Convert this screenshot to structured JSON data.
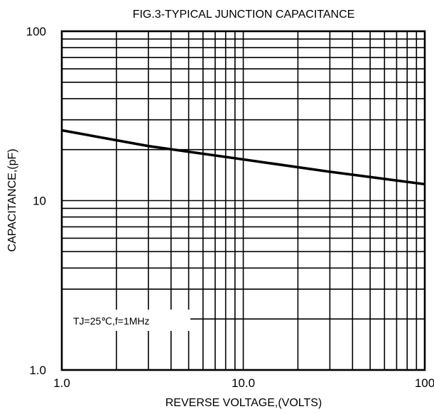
{
  "chart_data": {
    "type": "line",
    "title": "FIG.3-TYPICAL JUNCTION CAPACITANCE",
    "xlabel": "REVERSE VOLTAGE,(VOLTS)",
    "ylabel": "CAPACITANCE,(pF)",
    "x_scale": "log",
    "y_scale": "log",
    "xlim": [
      1,
      100
    ],
    "ylim": [
      1,
      100
    ],
    "x_ticks": [
      1,
      10,
      100
    ],
    "x_tick_labels": [
      "1.0",
      "10.0",
      "100"
    ],
    "y_ticks": [
      1,
      10,
      100
    ],
    "y_tick_labels": [
      "1.0",
      "10",
      "100"
    ],
    "grid": true,
    "annotation": "TJ=25℃,f=1MHz",
    "series": [
      {
        "x": [
          1,
          3,
          10,
          30,
          100
        ],
        "y": [
          26,
          21,
          17.5,
          14.8,
          12.5
        ]
      }
    ],
    "colors": {
      "line": "#000000",
      "grid": "#000000",
      "background": "#ffffff"
    }
  }
}
